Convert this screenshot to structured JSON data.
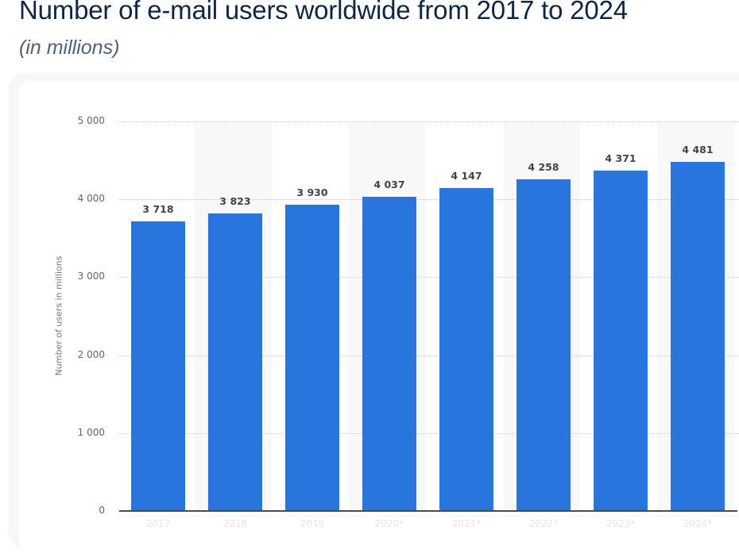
{
  "header": {
    "title": "Number of e-mail users worldwide from 2017 to 2024",
    "subtitle": "(in millions)"
  },
  "chart_data": {
    "type": "bar",
    "title": "Number of e-mail users worldwide from 2017 to 2024",
    "subtitle": "(in millions)",
    "xlabel": "",
    "ylabel": "Number of users in millions",
    "categories": [
      "2017",
      "2018",
      "2019",
      "2020*",
      "2021*",
      "2022*",
      "2023*",
      "2024*"
    ],
    "values": [
      3718,
      3823,
      3930,
      4037,
      4147,
      4258,
      4371,
      4481
    ],
    "value_labels": [
      "3 718",
      "3 823",
      "3 930",
      "4 037",
      "4 147",
      "4 258",
      "4 371",
      "4 481"
    ],
    "ylim": [
      0,
      5000
    ],
    "yticks": [
      0,
      1000,
      2000,
      3000,
      4000,
      5000
    ],
    "ytick_labels": [
      "0",
      "1 000",
      "2 000",
      "3 000",
      "4 000",
      "5 000"
    ],
    "grid": true,
    "legend": "none",
    "bar_color": "#2876dd"
  }
}
